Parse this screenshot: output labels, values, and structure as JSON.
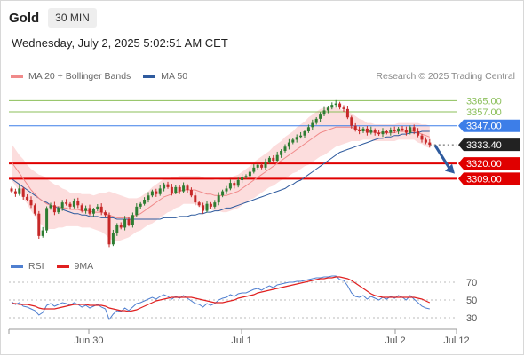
{
  "header": {
    "symbol": "Gold",
    "timeframe": "30 MIN"
  },
  "datetime": "Wednesday, July 2, 2025 5:02:51 AM CET",
  "legend": [
    {
      "label": "MA 20 + Bollinger Bands",
      "color": "#f08a8a"
    },
    {
      "label": "MA 50",
      "color": "#2f5b9e"
    }
  ],
  "credit": "Research © 2025 Trading Central",
  "rsi_legend": [
    {
      "label": "RSI",
      "color": "#4f7fd0"
    },
    {
      "label": "9MA",
      "color": "#e02020"
    }
  ],
  "colors": {
    "up": "#2e7d32",
    "down": "#c62828",
    "band_fill": "#fcd9d9",
    "ma20": "#f08a8a",
    "ma50": "#2f5b9e",
    "green_level": "#8bbf5a",
    "blue_level": "#3d7ee8",
    "red_level": "#e00000",
    "current": "#222222",
    "arrow": "#2f5b9e"
  },
  "chart_data": [
    {
      "type": "candlestick",
      "y_range": [
        3259,
        3371
      ],
      "x_ticks": [
        "Jun 30",
        "Jul 1",
        "Jul 2",
        "Jul 12"
      ],
      "levels": [
        {
          "value": 3365.0,
          "label": "3365.00",
          "style": "green"
        },
        {
          "value": 3357.0,
          "label": "3357.00",
          "style": "green"
        },
        {
          "value": 3347.0,
          "label": "3347.00",
          "style": "blue"
        },
        {
          "value": 3333.4,
          "label": "3333.40",
          "style": "current"
        },
        {
          "value": 3320.0,
          "label": "3320.00",
          "style": "red"
        },
        {
          "value": 3309.0,
          "label": "3309.00",
          "style": "red"
        }
      ],
      "close": [
        3300,
        3298,
        3302,
        3296,
        3294,
        3290,
        3284,
        3268,
        3272,
        3288,
        3290,
        3285,
        3288,
        3292,
        3291,
        3289,
        3293,
        3290,
        3286,
        3288,
        3284,
        3287,
        3289,
        3285,
        3283,
        3262,
        3270,
        3276,
        3274,
        3280,
        3276,
        3283,
        3289,
        3291,
        3294,
        3297,
        3300,
        3298,
        3302,
        3305,
        3303,
        3299,
        3303,
        3300,
        3304,
        3301,
        3297,
        3292,
        3290,
        3286,
        3291,
        3289,
        3292,
        3297,
        3300,
        3302,
        3306,
        3304,
        3308,
        3310,
        3311,
        3314,
        3317,
        3319,
        3317,
        3321,
        3324,
        3322,
        3326,
        3329,
        3332,
        3335,
        3337,
        3339,
        3340,
        3343,
        3346,
        3349,
        3352,
        3355,
        3358,
        3360,
        3362,
        3363,
        3360,
        3359,
        3353,
        3347,
        3344,
        3343,
        3345,
        3342,
        3344,
        3342,
        3341,
        3343,
        3342,
        3344,
        3343,
        3345,
        3344,
        3342,
        3346,
        3343,
        3340,
        3337,
        3335,
        3333.4
      ],
      "ma20": [
        3321,
        3317,
        3313,
        3309,
        3305,
        3301,
        3298,
        3295,
        3293,
        3291,
        3290,
        3289,
        3289,
        3288,
        3288,
        3287,
        3287,
        3287,
        3286,
        3286,
        3286,
        3285,
        3285,
        3285,
        3284,
        3283,
        3282,
        3281,
        3281,
        3281,
        3281,
        3282,
        3283,
        3284,
        3286,
        3288,
        3290,
        3292,
        3294,
        3296,
        3297,
        3298,
        3299,
        3300,
        3301,
        3301,
        3301,
        3301,
        3300,
        3299,
        3298,
        3298,
        3297,
        3297,
        3297,
        3297,
        3298,
        3299,
        3300,
        3302,
        3304,
        3306,
        3308,
        3310,
        3312,
        3314,
        3316,
        3318,
        3320,
        3322,
        3324,
        3326,
        3328,
        3330,
        3332,
        3334,
        3336,
        3338,
        3340,
        3342,
        3343,
        3344,
        3345,
        3346,
        3346,
        3346,
        3346,
        3346,
        3345,
        3344,
        3344,
        3343,
        3343,
        3342,
        3342,
        3342,
        3342,
        3342,
        3342,
        3343,
        3343,
        3343,
        3343,
        3343,
        3342,
        3341,
        3340,
        3339
      ],
      "bb_width": [
        13,
        13,
        13,
        14,
        14,
        15,
        16,
        17,
        18,
        18,
        17,
        16,
        15,
        14,
        13,
        12,
        12,
        12,
        12,
        12,
        12,
        12,
        13,
        14,
        15,
        17,
        17,
        17,
        16,
        15,
        14,
        13,
        12,
        12,
        12,
        12,
        13,
        13,
        13,
        13,
        12,
        12,
        11,
        11,
        10,
        10,
        10,
        10,
        11,
        11,
        11,
        11,
        11,
        11,
        12,
        12,
        12,
        12,
        12,
        12,
        12,
        12,
        13,
        13,
        13,
        13,
        13,
        14,
        14,
        14,
        15,
        15,
        15,
        16,
        16,
        16,
        17,
        17,
        17,
        17,
        17,
        16,
        15,
        14,
        13,
        12,
        11,
        10,
        9,
        8,
        7,
        6,
        6,
        6,
        6,
        6,
        6,
        6,
        6,
        6,
        6,
        6,
        6,
        6,
        7,
        7,
        8,
        8
      ],
      "ma50": [
        3309,
        3307,
        3305,
        3303,
        3301,
        3299,
        3297,
        3295,
        3293,
        3292,
        3290,
        3289,
        3288,
        3287,
        3286,
        3285,
        3284,
        3284,
        3283,
        3283,
        3282,
        3282,
        3282,
        3281,
        3281,
        3281,
        3281,
        3280,
        3280,
        3280,
        3280,
        3280,
        3280,
        3280,
        3280,
        3280,
        3280,
        3280,
        3280,
        3281,
        3281,
        3281,
        3281,
        3282,
        3282,
        3282,
        3283,
        3283,
        3284,
        3284,
        3285,
        3285,
        3286,
        3286,
        3287,
        3288,
        3288,
        3289,
        3290,
        3291,
        3292,
        3293,
        3294,
        3295,
        3296,
        3297,
        3298,
        3299,
        3300,
        3301,
        3302,
        3304,
        3305,
        3307,
        3308,
        3310,
        3312,
        3314,
        3316,
        3318,
        3320,
        3322,
        3324,
        3326,
        3328,
        3329,
        3330,
        3331,
        3332,
        3333,
        3334,
        3335,
        3336,
        3337,
        3338,
        3338,
        3339,
        3339,
        3340,
        3340,
        3341,
        3341,
        3342,
        3342,
        3342,
        3343,
        3343,
        3343
      ]
    },
    {
      "type": "line",
      "name": "RSI",
      "y_range": [
        20,
        80
      ],
      "y_ticks": [
        30,
        50,
        70
      ],
      "rsi": [
        48,
        45,
        47,
        43,
        42,
        40,
        38,
        33,
        36,
        44,
        46,
        43,
        45,
        47,
        46,
        44,
        47,
        45,
        42,
        44,
        41,
        43,
        45,
        42,
        40,
        28,
        34,
        38,
        37,
        41,
        38,
        42,
        46,
        47,
        49,
        51,
        53,
        51,
        54,
        56,
        54,
        51,
        54,
        52,
        55,
        52,
        49,
        46,
        45,
        42,
        46,
        44,
        46,
        50,
        52,
        53,
        56,
        54,
        57,
        58,
        58,
        60,
        62,
        63,
        61,
        64,
        66,
        64,
        67,
        68,
        69,
        70,
        70,
        71,
        71,
        72,
        73,
        74,
        75,
        75,
        76,
        76,
        77,
        77,
        73,
        72,
        66,
        58,
        54,
        53,
        55,
        51,
        54,
        52,
        50,
        53,
        51,
        54,
        52,
        55,
        53,
        50,
        55,
        51,
        47,
        43,
        41,
        40
      ],
      "ma9": [
        46,
        46,
        45,
        45,
        45,
        44,
        43,
        41,
        40,
        40,
        40,
        40,
        41,
        42,
        43,
        44,
        45,
        45,
        45,
        45,
        44,
        44,
        44,
        44,
        43,
        41,
        40,
        39,
        38,
        38,
        37,
        38,
        39,
        41,
        43,
        45,
        47,
        49,
        50,
        51,
        52,
        53,
        53,
        53,
        53,
        53,
        53,
        52,
        51,
        50,
        49,
        48,
        47,
        47,
        47,
        48,
        49,
        50,
        52,
        53,
        54,
        55,
        56,
        58,
        59,
        60,
        61,
        62,
        63,
        64,
        65,
        66,
        67,
        68,
        69,
        70,
        71,
        72,
        73,
        74,
        74,
        75,
        75,
        76,
        76,
        75,
        74,
        72,
        69,
        66,
        63,
        60,
        57,
        55,
        54,
        53,
        53,
        53,
        53,
        53,
        53,
        53,
        53,
        53,
        52,
        51,
        49,
        47
      ]
    }
  ]
}
